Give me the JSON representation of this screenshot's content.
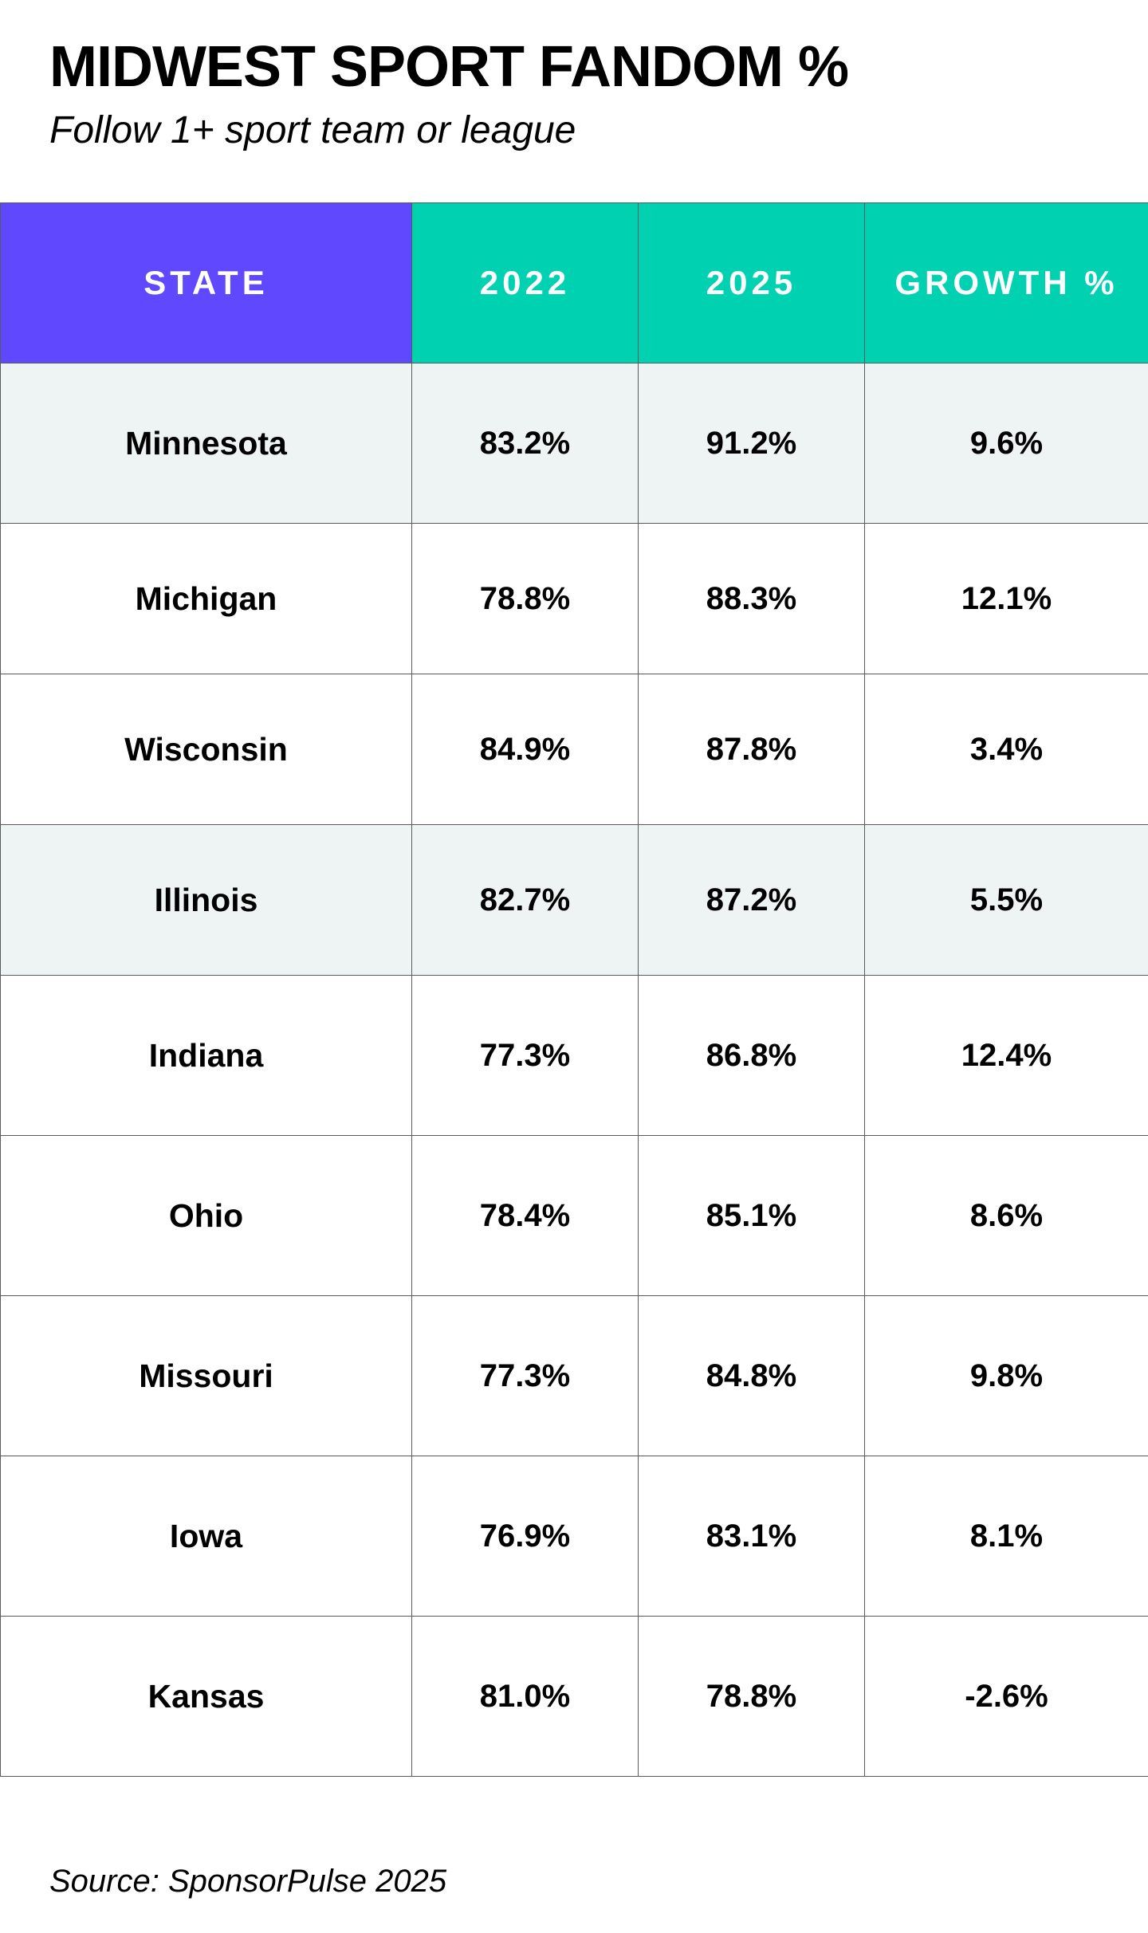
{
  "title": "MIDWEST SPORT FANDOM %",
  "subtitle": "Follow 1+ sport team or league",
  "source": "Source: SponsorPulse 2025",
  "colors": {
    "state_header": "#6048ff",
    "year_header": "#00d1b0",
    "shaded_row": "#eef4f3",
    "grid_line": "#5a5a5a"
  },
  "chart_data": {
    "type": "table",
    "title": "MIDWEST SPORT FANDOM %",
    "subtitle": "Follow 1+ sport team or league",
    "columns": [
      "STATE",
      "2022",
      "2025",
      "GROWTH %"
    ],
    "rows": [
      {
        "state": "Minnesota",
        "y2022": "83.2%",
        "y2025": "91.2%",
        "growth": "9.6%",
        "shaded": true
      },
      {
        "state": "Michigan",
        "y2022": "78.8%",
        "y2025": "88.3%",
        "growth": "12.1%",
        "shaded": false
      },
      {
        "state": "Wisconsin",
        "y2022": "84.9%",
        "y2025": "87.8%",
        "growth": "3.4%",
        "shaded": false
      },
      {
        "state": "Illinois",
        "y2022": "82.7%",
        "y2025": "87.2%",
        "growth": "5.5%",
        "shaded": true
      },
      {
        "state": "Indiana",
        "y2022": "77.3%",
        "y2025": "86.8%",
        "growth": "12.4%",
        "shaded": false
      },
      {
        "state": "Ohio",
        "y2022": "78.4%",
        "y2025": "85.1%",
        "growth": "8.6%",
        "shaded": false
      },
      {
        "state": "Missouri",
        "y2022": "77.3%",
        "y2025": "84.8%",
        "growth": "9.8%",
        "shaded": false
      },
      {
        "state": "Iowa",
        "y2022": "76.9%",
        "y2025": "83.1%",
        "growth": "8.1%",
        "shaded": false
      },
      {
        "state": "Kansas",
        "y2022": "81.0%",
        "y2025": "78.8%",
        "growth": "-2.6%",
        "shaded": false
      }
    ]
  }
}
